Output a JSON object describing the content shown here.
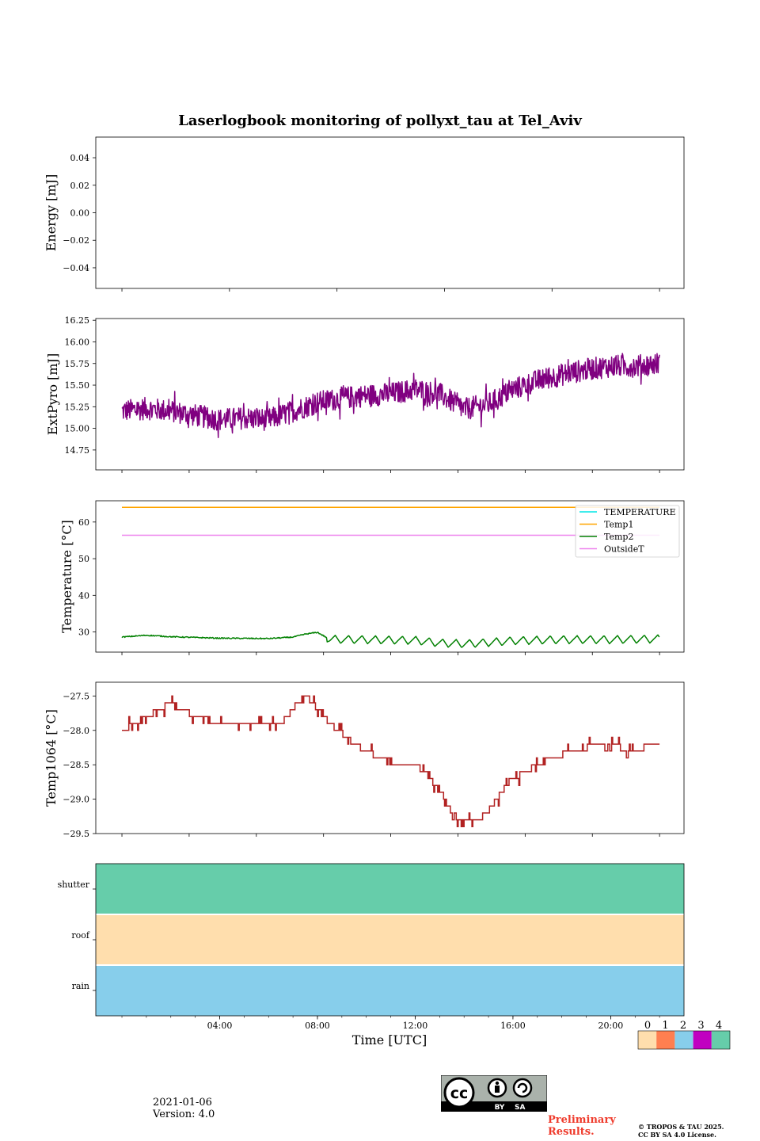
{
  "figure": {
    "title": "Laserlogbook monitoring of pollyxt_tau at Tel_Aviv",
    "xlabel": "Time [UTC]",
    "x_ticks": [
      "04:00",
      "08:00",
      "12:00",
      "16:00",
      "20:00"
    ]
  },
  "chart_data": [
    {
      "type": "line",
      "ylabel": "Energy [mJ]",
      "ylim": [
        -0.055,
        0.055
      ],
      "y_ticks": [
        "0.04",
        "0.02",
        "0.00",
        "−0.02",
        "−0.04"
      ],
      "y_tick_values": [
        0.04,
        0.02,
        0.0,
        -0.02,
        -0.04
      ],
      "series": []
    },
    {
      "type": "line",
      "ylabel": "ExtPyro [mJ]",
      "ylim": [
        14.52,
        16.27
      ],
      "y_ticks": [
        "16.25",
        "16.00",
        "15.75",
        "15.50",
        "15.25",
        "15.00",
        "14.75"
      ],
      "y_tick_values": [
        16.25,
        16.0,
        15.75,
        15.5,
        15.25,
        15.0,
        14.75
      ],
      "series": [
        {
          "color": "#800080",
          "x": [
            0.0,
            1.0,
            2.0,
            3.0,
            4.0,
            5.0,
            6.0,
            7.0,
            8.0,
            9.0,
            10.0,
            11.0,
            12.0,
            13.0,
            14.0,
            15.0,
            16.0,
            17.0,
            18.0,
            19.0,
            20.0,
            21.0,
            22.0
          ],
          "y": [
            15.2,
            15.23,
            15.2,
            15.15,
            15.1,
            15.12,
            15.1,
            15.2,
            15.3,
            15.35,
            15.38,
            15.4,
            15.45,
            15.4,
            15.22,
            15.28,
            15.45,
            15.55,
            15.62,
            15.68,
            15.72,
            15.72,
            15.75
          ],
          "noise": 0.13
        }
      ]
    },
    {
      "type": "line",
      "ylabel": "Temperature [°C]",
      "ylim": [
        24.5,
        65.8
      ],
      "y_ticks": [
        "60",
        "50",
        "40",
        "30"
      ],
      "y_tick_values": [
        60,
        50,
        40,
        30
      ],
      "legend": [
        "TEMPERATURE",
        "Temp1",
        "Temp2",
        "OutsideT"
      ],
      "legend_position": "upper right",
      "series": [
        {
          "color": "#00e5e5",
          "x": [],
          "y": []
        },
        {
          "color": "#ffa500",
          "x": [
            0.0,
            22.0
          ],
          "y": [
            64.0,
            64.0
          ]
        },
        {
          "color": "#008000",
          "x": [
            0.0,
            1.0,
            2.0,
            4.0,
            6.0,
            7.0,
            7.5,
            8.0,
            8.5,
            10.0,
            12.0,
            13.0,
            14.0,
            14.5,
            16.0,
            18.0,
            20.0,
            22.0
          ],
          "y": [
            28.6,
            29.1,
            28.7,
            28.3,
            28.2,
            28.6,
            29.4,
            29.9,
            28.0,
            27.9,
            27.7,
            27.0,
            26.8,
            26.9,
            27.6,
            27.9,
            27.9,
            28.1
          ],
          "sawtooth": true
        },
        {
          "color": "#ee82ee",
          "x": [
            0.0,
            22.0
          ],
          "y": [
            56.4,
            56.4
          ]
        }
      ]
    },
    {
      "type": "line",
      "ylabel": "Temp1064 [°C]",
      "ylim": [
        -29.5,
        -27.3
      ],
      "y_ticks": [
        "−27.5",
        "−28.0",
        "−28.5",
        "−29.0",
        "−29.5"
      ],
      "y_tick_values": [
        -27.5,
        -28.0,
        -28.5,
        -29.0,
        -29.5
      ],
      "series": [
        {
          "color": "#b22222",
          "x": [
            0.0,
            0.5,
            1.0,
            1.5,
            2.0,
            2.5,
            3.0,
            4.0,
            5.0,
            6.0,
            6.5,
            7.0,
            7.5,
            8.0,
            8.5,
            9.0,
            9.5,
            10.0,
            10.5,
            11.0,
            11.5,
            12.0,
            12.5,
            13.0,
            13.5,
            14.0,
            14.5,
            15.0,
            15.5,
            16.0,
            16.5,
            17.0,
            17.5,
            18.0,
            19.0,
            20.0,
            21.0,
            22.0
          ],
          "y": [
            -28.0,
            -27.9,
            -27.8,
            -27.7,
            -27.6,
            -27.7,
            -27.8,
            -27.9,
            -27.95,
            -27.95,
            -27.9,
            -27.7,
            -27.45,
            -27.7,
            -27.9,
            -28.05,
            -28.2,
            -28.3,
            -28.4,
            -28.45,
            -28.5,
            -28.5,
            -28.65,
            -28.9,
            -29.2,
            -29.35,
            -29.35,
            -29.15,
            -28.9,
            -28.7,
            -28.6,
            -28.5,
            -28.42,
            -28.35,
            -28.25,
            -28.22,
            -28.3,
            -28.15
          ],
          "step": 0.1
        }
      ]
    },
    {
      "type": "heatmap",
      "y_ticks": [
        "shutter",
        "roof",
        "rain"
      ],
      "x": [
        0.0,
        24.0
      ],
      "rows": [
        {
          "label": "shutter",
          "value": 4,
          "color": "#66cdaa"
        },
        {
          "label": "roof",
          "value": 0,
          "color": "#ffdead"
        },
        {
          "label": "rain",
          "value": 2,
          "color": "#87ceeb"
        }
      ],
      "colorbar": {
        "ticks": [
          "0",
          "1",
          "2",
          "3",
          "4"
        ],
        "colors": [
          "#ffdead",
          "#ff7f50",
          "#87ceeb",
          "#c000c0",
          "#66cdaa"
        ]
      }
    }
  ],
  "footer": {
    "date": "2021-01-06",
    "version": "Version: 4.0",
    "preliminary_line1": "Preliminary",
    "preliminary_line2": "Results.",
    "copyright_line1": "© TROPOS & TAU 2025.",
    "copyright_line2": "CC BY SA 4.0 License.",
    "cc_badge_text": "BY    SA"
  }
}
